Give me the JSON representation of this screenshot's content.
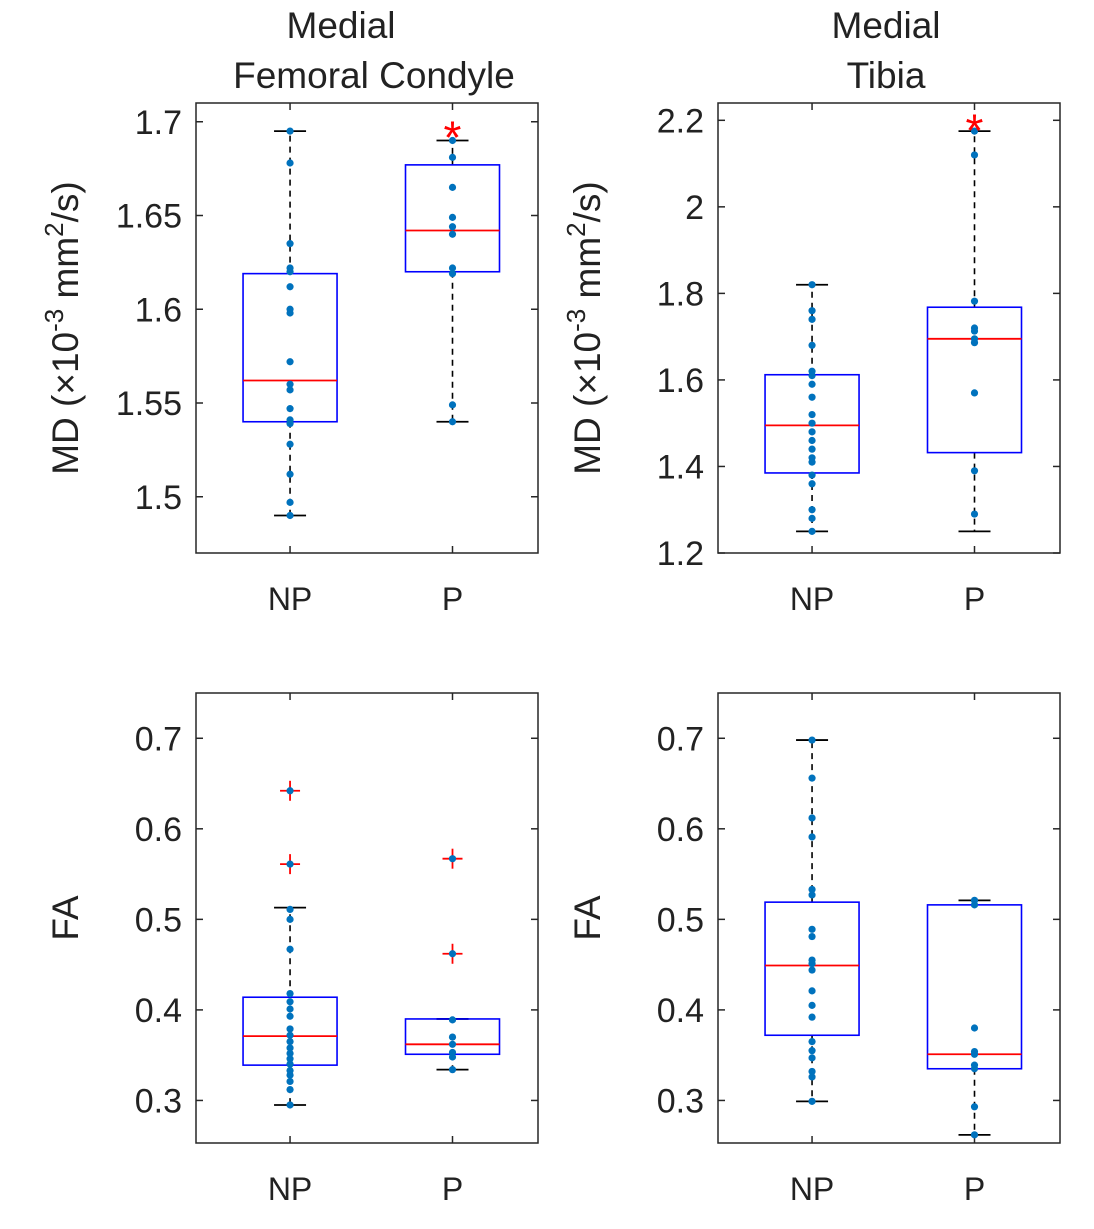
{
  "figure": {
    "column_titles": [
      {
        "lines": [
          "Medial",
          "Femoral Condyle"
        ]
      },
      {
        "lines": [
          "Medial",
          "Tibia"
        ]
      }
    ]
  },
  "colors": {
    "box": "#0000ff",
    "median": "#ff0000",
    "whisker": "#000000",
    "point": "#0072bd",
    "outlier": "#ff0000",
    "significance": "#ff0000",
    "axis": "#262626"
  },
  "chart_data": [
    {
      "id": "mfc-md",
      "type": "box",
      "title": "Medial Femoral Condyle",
      "ylabel": {
        "main": "MD (×10",
        "exp": "-3",
        "mid": " mm",
        "exp2": "2",
        "tail": "/s)"
      },
      "categories": [
        "NP",
        "P"
      ],
      "ylim": [
        1.47,
        1.71
      ],
      "yticks": [
        1.5,
        1.55,
        1.6,
        1.65,
        1.7
      ],
      "ytick_labels": [
        "1.5",
        "1.55",
        "1.6",
        "1.65",
        "1.7"
      ],
      "boxes": [
        {
          "category": "NP",
          "q1": 1.54,
          "median": 1.562,
          "q3": 1.619,
          "whisker_low": 1.49,
          "whisker_high": 1.695,
          "outliers": [],
          "points": [
            1.49,
            1.497,
            1.512,
            1.528,
            1.539,
            1.541,
            1.547,
            1.557,
            1.56,
            1.572,
            1.598,
            1.6,
            1.612,
            1.62,
            1.622,
            1.635,
            1.678,
            1.695
          ]
        },
        {
          "category": "P",
          "q1": 1.62,
          "median": 1.642,
          "q3": 1.677,
          "whisker_low": 1.54,
          "whisker_high": 1.69,
          "outliers": [],
          "points": [
            1.54,
            1.549,
            1.619,
            1.622,
            1.64,
            1.644,
            1.649,
            1.665,
            1.681,
            1.69
          ]
        }
      ],
      "significance": {
        "category": "P",
        "marker": "*",
        "value": 1.697
      }
    },
    {
      "id": "mt-md",
      "type": "box",
      "title": "Medial Tibia",
      "ylabel": {
        "main": "MD (×10",
        "exp": "-3",
        "mid": " mm",
        "exp2": "2",
        "tail": "/s)"
      },
      "categories": [
        "NP",
        "P"
      ],
      "ylim": [
        1.2,
        2.24
      ],
      "yticks": [
        1.2,
        1.4,
        1.6,
        1.8,
        2.0,
        2.2
      ],
      "ytick_labels": [
        "1.2",
        "1.4",
        "1.6",
        "1.8",
        "2",
        "2.2"
      ],
      "boxes": [
        {
          "category": "NP",
          "q1": 1.385,
          "median": 1.495,
          "q3": 1.612,
          "whisker_low": 1.25,
          "whisker_high": 1.82,
          "outliers": [],
          "points": [
            1.25,
            1.28,
            1.3,
            1.36,
            1.38,
            1.41,
            1.42,
            1.44,
            1.46,
            1.48,
            1.5,
            1.52,
            1.56,
            1.59,
            1.61,
            1.62,
            1.68,
            1.74,
            1.76,
            1.82
          ]
        },
        {
          "category": "P",
          "q1": 1.432,
          "median": 1.695,
          "q3": 1.768,
          "whisker_low": 1.25,
          "whisker_high": 2.175,
          "outliers": [],
          "points": [
            1.29,
            1.39,
            1.57,
            1.686,
            1.695,
            1.713,
            1.72,
            1.782,
            2.12,
            2.175
          ]
        }
      ],
      "significance": {
        "category": "P",
        "marker": "*",
        "value": 2.2
      }
    },
    {
      "id": "mfc-fa",
      "type": "box",
      "title": "",
      "ylabel": {
        "main": "FA"
      },
      "categories": [
        "NP",
        "P"
      ],
      "ylim": [
        0.253,
        0.75
      ],
      "yticks": [
        0.3,
        0.4,
        0.5,
        0.6,
        0.7
      ],
      "ytick_labels": [
        "0.3",
        "0.4",
        "0.5",
        "0.6",
        "0.7"
      ],
      "boxes": [
        {
          "category": "NP",
          "q1": 0.339,
          "median": 0.371,
          "q3": 0.414,
          "whisker_low": 0.295,
          "whisker_high": 0.513,
          "outliers": [
            0.561,
            0.642
          ],
          "points": [
            0.295,
            0.312,
            0.321,
            0.328,
            0.333,
            0.34,
            0.346,
            0.352,
            0.358,
            0.365,
            0.372,
            0.379,
            0.393,
            0.401,
            0.409,
            0.418,
            0.467,
            0.5,
            0.511,
            0.561,
            0.642
          ]
        },
        {
          "category": "P",
          "q1": 0.351,
          "median": 0.362,
          "q3": 0.39,
          "whisker_low": 0.334,
          "whisker_high": 0.39,
          "outliers": [
            0.462,
            0.567
          ],
          "points": [
            0.334,
            0.348,
            0.353,
            0.362,
            0.37,
            0.389,
            0.462,
            0.567
          ]
        }
      ],
      "significance": null
    },
    {
      "id": "mt-fa",
      "type": "box",
      "title": "",
      "ylabel": {
        "main": "FA"
      },
      "categories": [
        "NP",
        "P"
      ],
      "ylim": [
        0.253,
        0.75
      ],
      "yticks": [
        0.3,
        0.4,
        0.5,
        0.6,
        0.7
      ],
      "ytick_labels": [
        "0.3",
        "0.4",
        "0.5",
        "0.6",
        "0.7"
      ],
      "boxes": [
        {
          "category": "NP",
          "q1": 0.372,
          "median": 0.449,
          "q3": 0.519,
          "whisker_low": 0.299,
          "whisker_high": 0.698,
          "outliers": [],
          "points": [
            0.299,
            0.326,
            0.332,
            0.347,
            0.355,
            0.365,
            0.392,
            0.405,
            0.421,
            0.444,
            0.451,
            0.455,
            0.481,
            0.489,
            0.527,
            0.533,
            0.591,
            0.612,
            0.656,
            0.698
          ]
        },
        {
          "category": "P",
          "q1": 0.335,
          "median": 0.351,
          "q3": 0.516,
          "whisker_low": 0.262,
          "whisker_high": 0.521,
          "outliers": [],
          "points": [
            0.262,
            0.293,
            0.335,
            0.339,
            0.351,
            0.354,
            0.38,
            0.516,
            0.521
          ]
        }
      ],
      "significance": null
    }
  ]
}
